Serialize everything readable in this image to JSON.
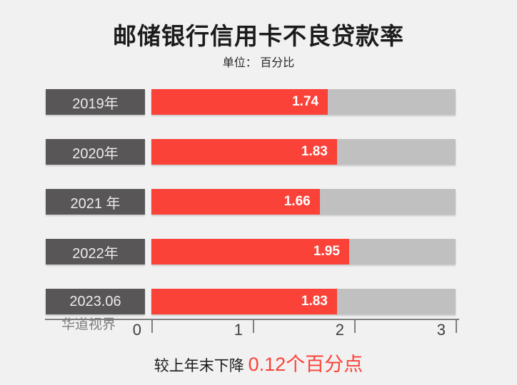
{
  "title": "邮储银行信用卡不良贷款率",
  "subtitle": "单位： 百分比",
  "watermark": "华道视界",
  "footnote": {
    "text": "较上年末下降 ",
    "highlight": "0.12个百分点"
  },
  "colors": {
    "bar_red": "#fa4238",
    "label_box_dark": "#595657",
    "track_gray": "#c1c0c0",
    "axis_gray": "#7f7f7f",
    "background": "#f1f1f1"
  },
  "chart_data": {
    "type": "bar",
    "orientation": "horizontal",
    "title": "邮储银行信用卡不良贷款率",
    "unit_label": "单位： 百分比",
    "categories": [
      "2019年",
      "2020年",
      "2021 年",
      "2022年",
      "2023.06"
    ],
    "values": [
      1.74,
      1.83,
      1.66,
      1.95,
      1.83
    ],
    "value_labels": [
      "1.74",
      "1.83",
      "1.66",
      "1.95",
      "1.83"
    ],
    "xlim": [
      0,
      3
    ],
    "xticks": [
      "0",
      "1",
      "2",
      "3"
    ],
    "grid": false,
    "legend": false,
    "annotation": "较上年末下降 0.12个百分点"
  }
}
